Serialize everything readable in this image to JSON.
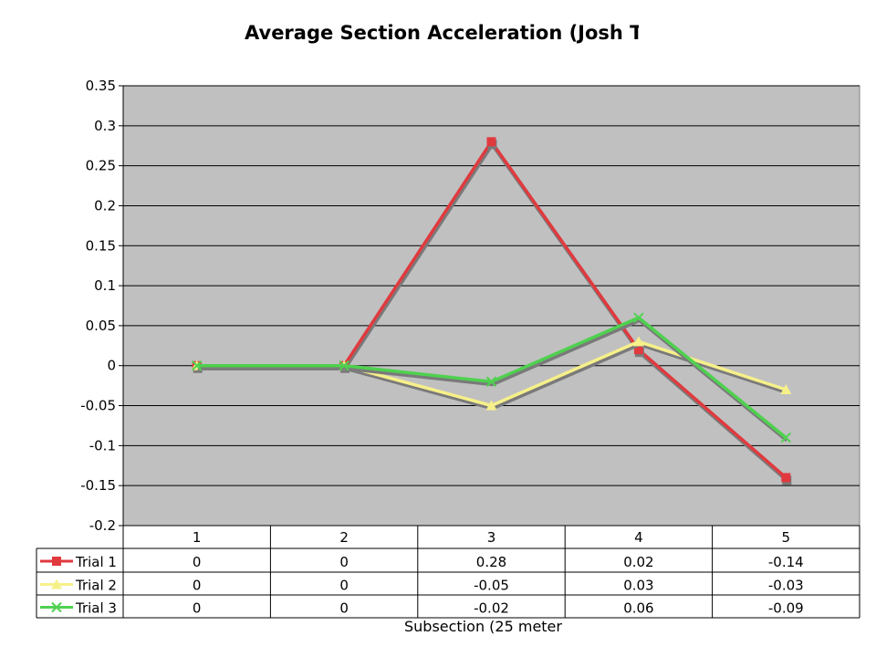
{
  "chart_data": {
    "type": "line",
    "title": "Average Section Acceleration (Josh Tre",
    "xlabel": "Subsection (25 meter",
    "ylabel": "",
    "categories": [
      "1",
      "2",
      "3",
      "4",
      "5"
    ],
    "ylim": [
      -0.2,
      0.35
    ],
    "ytick_step": 0.05,
    "yticks": [
      "0.35",
      "0.3",
      "0.25",
      "0.2",
      "0.15",
      "0.1",
      "0.05",
      "0",
      "-0.05",
      "-0.1",
      "-0.15",
      "-0.2"
    ],
    "grid": true,
    "plot_background": "#c0c0c0",
    "legend": "data-table-left",
    "series": [
      {
        "name": "Trial 1",
        "values": [
          0,
          0,
          0.28,
          0.02,
          -0.14
        ],
        "table": [
          "0",
          "0",
          "0.28",
          "0.02",
          "-0.14"
        ],
        "color": "#e03a3e",
        "marker": "square"
      },
      {
        "name": "Trial 2",
        "values": [
          0,
          0,
          -0.05,
          0.03,
          -0.03
        ],
        "table": [
          "0",
          "0",
          "-0.05",
          "0.03",
          "-0.03"
        ],
        "color": "#f6f08a",
        "marker": "triangle"
      },
      {
        "name": "Trial 3",
        "values": [
          0,
          0,
          -0.02,
          0.06,
          -0.09
        ],
        "table": [
          "0",
          "0",
          "-0.02",
          "0.06",
          "-0.09"
        ],
        "color": "#4fd14f",
        "marker": "x"
      }
    ]
  }
}
